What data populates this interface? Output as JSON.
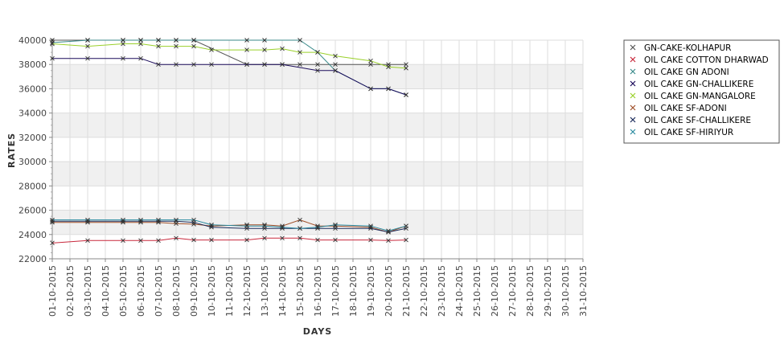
{
  "chart_data": {
    "type": "line",
    "title": "",
    "xlabel": "DAYS",
    "ylabel": "RATES",
    "ylim": [
      22000,
      40000
    ],
    "yticks": [
      22000,
      24000,
      26000,
      28000,
      30000,
      32000,
      34000,
      36000,
      38000,
      40000
    ],
    "ytick_labels": [
      "22000",
      "24000",
      "26000",
      "28000",
      "30000",
      "32000",
      "34000",
      "36000",
      "38000",
      "40000"
    ],
    "x_labels": [
      "01-10-2015",
      "02-10-2015",
      "03-10-2015",
      "04-10-2015",
      "05-10-2015",
      "06-10-2015",
      "07-10-2015",
      "08-10-2015",
      "09-10-2015",
      "10-10-2015",
      "11-10-2015",
      "12-10-2015",
      "13-10-2015",
      "14-10-2015",
      "15-10-2015",
      "16-10-2015",
      "17-10-2015",
      "18-10-2015",
      "19-10-2015",
      "20-10-2015",
      "21-10-2015",
      "22-10-2015",
      "23-10-2015",
      "24-10-2015",
      "25-10-2015",
      "26-10-2015",
      "27-10-2015",
      "28-10-2015",
      "29-10-2015",
      "30-10-2015",
      "31-10-2015"
    ],
    "legend_position": "right",
    "grid": true,
    "series": [
      {
        "name": "GN-CAKE-KOLHAPUR",
        "color": "#555555",
        "points": [
          [
            1,
            40000
          ],
          [
            3,
            40000
          ],
          [
            5,
            40000
          ],
          [
            6,
            40000
          ],
          [
            7,
            40000
          ],
          [
            8,
            40000
          ],
          [
            9,
            40000
          ],
          [
            12,
            38000
          ],
          [
            13,
            38000
          ],
          [
            14,
            38000
          ],
          [
            15,
            38000
          ],
          [
            16,
            38000
          ],
          [
            17,
            38000
          ],
          [
            19,
            38000
          ],
          [
            20,
            38000
          ],
          [
            21,
            38000
          ]
        ]
      },
      {
        "name": "OIL CAKE COTTON DHARWAD",
        "color": "#c8283c",
        "points": [
          [
            1,
            23300
          ],
          [
            3,
            23500
          ],
          [
            5,
            23500
          ],
          [
            6,
            23500
          ],
          [
            7,
            23500
          ],
          [
            8,
            23700
          ],
          [
            9,
            23550
          ],
          [
            10,
            23550
          ],
          [
            12,
            23550
          ],
          [
            13,
            23700
          ],
          [
            14,
            23700
          ],
          [
            15,
            23700
          ],
          [
            16,
            23550
          ],
          [
            17,
            23550
          ],
          [
            19,
            23550
          ],
          [
            20,
            23500
          ],
          [
            21,
            23550
          ]
        ]
      },
      {
        "name": "OIL CAKE GN ADONI",
        "color": "#3a8a8a",
        "points": [
          [
            1,
            39800
          ],
          [
            3,
            40000
          ],
          [
            5,
            40000
          ],
          [
            6,
            40000
          ],
          [
            7,
            40000
          ],
          [
            8,
            40000
          ],
          [
            9,
            40000
          ],
          [
            12,
            40000
          ],
          [
            13,
            40000
          ],
          [
            15,
            40000
          ],
          [
            16,
            39000
          ],
          [
            17,
            37500
          ],
          [
            19,
            36000
          ],
          [
            20,
            36000
          ],
          [
            21,
            35500
          ]
        ]
      },
      {
        "name": "OIL CAKE GN-CHALLIKERE",
        "color": "#1a0a5a",
        "points": [
          [
            1,
            38500
          ],
          [
            3,
            38500
          ],
          [
            5,
            38500
          ],
          [
            6,
            38500
          ],
          [
            7,
            38000
          ],
          [
            8,
            38000
          ],
          [
            9,
            38000
          ],
          [
            10,
            38000
          ],
          [
            12,
            38000
          ],
          [
            13,
            38000
          ],
          [
            14,
            38000
          ],
          [
            16,
            37500
          ],
          [
            17,
            37500
          ],
          [
            19,
            36000
          ],
          [
            20,
            36000
          ],
          [
            21,
            35500
          ]
        ]
      },
      {
        "name": "OIL CAKE GN-MANGALORE",
        "color": "#9ad02a",
        "points": [
          [
            1,
            39700
          ],
          [
            3,
            39500
          ],
          [
            5,
            39700
          ],
          [
            6,
            39700
          ],
          [
            7,
            39500
          ],
          [
            8,
            39500
          ],
          [
            9,
            39500
          ],
          [
            10,
            39200
          ],
          [
            12,
            39200
          ],
          [
            13,
            39200
          ],
          [
            14,
            39300
          ],
          [
            15,
            39000
          ],
          [
            16,
            39000
          ],
          [
            17,
            38700
          ],
          [
            19,
            38300
          ],
          [
            20,
            37800
          ],
          [
            21,
            37700
          ]
        ]
      },
      {
        "name": "OIL CAKE SF-ADONI",
        "color": "#a0502a",
        "points": [
          [
            1,
            25000
          ],
          [
            3,
            25000
          ],
          [
            5,
            25000
          ],
          [
            6,
            25000
          ],
          [
            7,
            25000
          ],
          [
            8,
            24900
          ],
          [
            9,
            24850
          ],
          [
            10,
            24700
          ],
          [
            12,
            24800
          ],
          [
            13,
            24800
          ],
          [
            14,
            24700
          ],
          [
            15,
            25200
          ],
          [
            16,
            24700
          ],
          [
            17,
            24700
          ],
          [
            19,
            24600
          ],
          [
            20,
            24200
          ],
          [
            21,
            24700
          ]
        ]
      },
      {
        "name": "OIL CAKE SF-CHALLIKERE",
        "color": "#1a2a5a",
        "points": [
          [
            1,
            25100
          ],
          [
            3,
            25100
          ],
          [
            5,
            25100
          ],
          [
            6,
            25100
          ],
          [
            7,
            25100
          ],
          [
            8,
            25100
          ],
          [
            9,
            25000
          ],
          [
            10,
            24600
          ],
          [
            12,
            24500
          ],
          [
            13,
            24500
          ],
          [
            14,
            24500
          ],
          [
            15,
            24500
          ],
          [
            16,
            24500
          ],
          [
            17,
            24500
          ],
          [
            19,
            24500
          ],
          [
            20,
            24200
          ],
          [
            21,
            24500
          ]
        ]
      },
      {
        "name": "OIL CAKE SF-HIRIYUR",
        "color": "#2a8aa0",
        "points": [
          [
            1,
            25200
          ],
          [
            3,
            25200
          ],
          [
            5,
            25200
          ],
          [
            6,
            25200
          ],
          [
            7,
            25200
          ],
          [
            8,
            25200
          ],
          [
            9,
            25200
          ],
          [
            10,
            24800
          ],
          [
            12,
            24700
          ],
          [
            13,
            24700
          ],
          [
            14,
            24600
          ],
          [
            15,
            24500
          ],
          [
            16,
            24600
          ],
          [
            17,
            24800
          ],
          [
            19,
            24700
          ],
          [
            20,
            24300
          ],
          [
            21,
            24700
          ]
        ]
      }
    ]
  }
}
